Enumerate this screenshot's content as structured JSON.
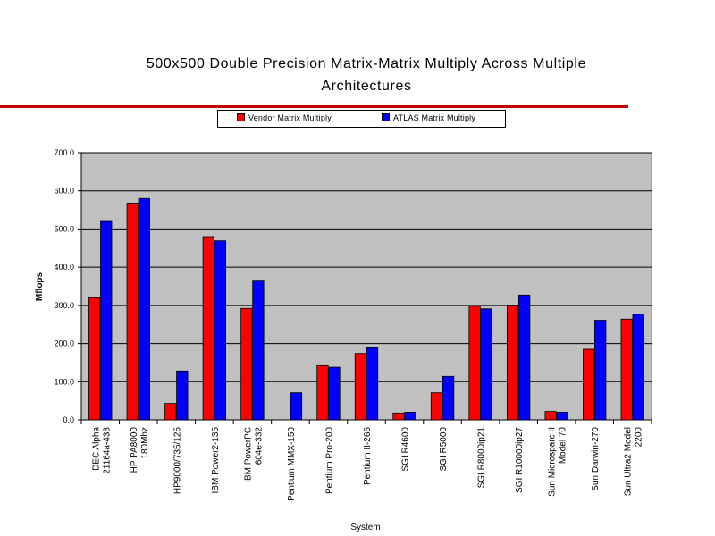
{
  "chart_data": {
    "type": "bar",
    "title_lines": [
      "500x500 Double Precision Matrix-Matrix Multiply Across Multiple",
      "Architectures"
    ],
    "xlabel": "System",
    "ylabel": "Mflops",
    "ylim": [
      0,
      700
    ],
    "yticks": [
      "0.0",
      "100.0",
      "200.0",
      "300.0",
      "400.0",
      "500.0",
      "600.0",
      "700.0"
    ],
    "grid": true,
    "legend_position": "top",
    "categories": [
      [
        "DEC Alpha",
        "21164a-433"
      ],
      [
        "HP PA8000",
        "180Mhz"
      ],
      [
        "HP9000/735/125"
      ],
      [
        "IBM Power2-135"
      ],
      [
        "IBM PowerPC",
        "604e-332"
      ],
      [
        "Pentium MMX-150"
      ],
      [
        "Pentium Pro-200"
      ],
      [
        "Pentium II-266"
      ],
      [
        "SGI R4600"
      ],
      [
        "SGI R5000"
      ],
      [
        "SGI R8000ip21"
      ],
      [
        "SGI R10000ip27"
      ],
      [
        "Sun Microsparc II",
        "Model 70"
      ],
      [
        "Sun Darwin-270"
      ],
      [
        "Sun Ultra2 Model",
        "2200"
      ]
    ],
    "series": [
      {
        "name": "Vendor Matrix Multiply",
        "color": "#ff0000",
        "values": [
          320,
          568,
          43,
          480,
          292,
          null,
          142,
          174,
          18,
          71,
          298,
          301,
          22,
          185,
          264
        ]
      },
      {
        "name": "ATLAS Matrix Multiply",
        "color": "#0000ff",
        "values": [
          522,
          580,
          128,
          469,
          366,
          71,
          138,
          191,
          20,
          114,
          291,
          327,
          20,
          261,
          277
        ]
      }
    ],
    "plot_background": "#c0c0c0"
  }
}
